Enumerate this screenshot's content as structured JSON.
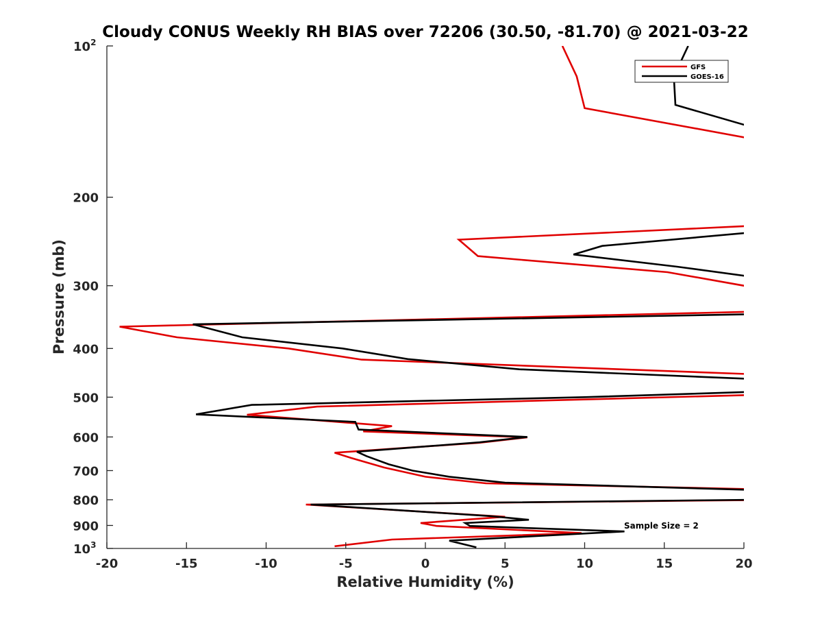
{
  "chart_data": {
    "type": "line",
    "title": "Cloudy CONUS Weekly RH BIAS over 72206 (30.50, -81.70) @ 2021-03-22",
    "xlabel": "Relative Humidity (%)",
    "ylabel": "Pressure (mb)",
    "xlim": [
      -20,
      20
    ],
    "ylim": [
      100,
      1000
    ],
    "yscale": "log",
    "y_reversed": true,
    "xticks": [
      {
        "value": -20,
        "label": "-20"
      },
      {
        "value": -15,
        "label": "-15"
      },
      {
        "value": -10,
        "label": "-10"
      },
      {
        "value": -5,
        "label": "-5"
      },
      {
        "value": 0,
        "label": "0"
      },
      {
        "value": 5,
        "label": "5"
      },
      {
        "value": 10,
        "label": "10"
      },
      {
        "value": 15,
        "label": "15"
      },
      {
        "value": 20,
        "label": "20"
      }
    ],
    "yticks": [
      {
        "value": 100,
        "base": "10",
        "exp": "2"
      },
      {
        "value": 200,
        "base": "200",
        "exp": ""
      },
      {
        "value": 300,
        "base": "300",
        "exp": ""
      },
      {
        "value": 400,
        "base": "400",
        "exp": ""
      },
      {
        "value": 500,
        "base": "500",
        "exp": ""
      },
      {
        "value": 600,
        "base": "600",
        "exp": ""
      },
      {
        "value": 700,
        "base": "700",
        "exp": ""
      },
      {
        "value": 800,
        "base": "800",
        "exp": ""
      },
      {
        "value": 900,
        "base": "900",
        "exp": ""
      },
      {
        "value": 1000,
        "base": "10",
        "exp": "3"
      }
    ],
    "legend_position": "top-right",
    "annotation": "Sample Size = 2",
    "series": [
      {
        "name": "GFS",
        "color": "#e00000",
        "points": [
          [
            8.6,
            100
          ],
          [
            9.5,
            115
          ],
          [
            10.0,
            133
          ],
          [
            20.5,
            153
          ],
          [
            20.5,
            228
          ],
          [
            2.1,
            243
          ],
          [
            3.3,
            262
          ],
          [
            15.2,
            282
          ],
          [
            20.5,
            302
          ],
          [
            20.5,
            338
          ],
          [
            -19.2,
            362
          ],
          [
            -15.6,
            380
          ],
          [
            -8.6,
            400
          ],
          [
            -4.0,
            421
          ],
          [
            20.5,
            450
          ],
          [
            20.5,
            495
          ],
          [
            -6.8,
            522
          ],
          [
            -11.2,
            542
          ],
          [
            -2.1,
            571
          ],
          [
            -3.9,
            585
          ],
          [
            6.4,
            601
          ],
          [
            3.4,
            616
          ],
          [
            -5.7,
            645
          ],
          [
            -4.7,
            660
          ],
          [
            -2.6,
            690
          ],
          [
            0.0,
            720
          ],
          [
            3.8,
            742
          ],
          [
            20.5,
            762
          ],
          [
            20.5,
            801
          ],
          [
            -7.5,
            818
          ],
          [
            5.0,
            865
          ],
          [
            -0.3,
            890
          ],
          [
            0.7,
            902
          ],
          [
            9.8,
            932
          ],
          [
            -2.1,
            960
          ],
          [
            -5.7,
            990
          ]
        ]
      },
      {
        "name": "GOES-16",
        "color": "#000000",
        "points": [
          [
            16.5,
            100
          ],
          [
            15.6,
            115
          ],
          [
            15.7,
            131
          ],
          [
            20.5,
            145
          ],
          [
            20.5,
            235
          ],
          [
            11.1,
            250
          ],
          [
            9.3,
            260
          ],
          [
            15.8,
            275
          ],
          [
            20.5,
            288
          ],
          [
            20.5,
            342
          ],
          [
            -14.6,
            358
          ],
          [
            -11.5,
            380
          ],
          [
            -5.2,
            400
          ],
          [
            -1.1,
            420
          ],
          [
            5.9,
            440
          ],
          [
            20.5,
            460
          ],
          [
            20.5,
            488
          ],
          [
            10.0,
            500
          ],
          [
            -10.9,
            518
          ],
          [
            -14.4,
            541
          ],
          [
            -4.4,
            560
          ],
          [
            -4.2,
            580
          ],
          [
            6.4,
            600
          ],
          [
            3.4,
            615
          ],
          [
            -4.3,
            642
          ],
          [
            -3.7,
            655
          ],
          [
            -2.3,
            680
          ],
          [
            -0.8,
            700
          ],
          [
            1.5,
            720
          ],
          [
            5.0,
            740
          ],
          [
            20.5,
            765
          ],
          [
            20.5,
            800
          ],
          [
            -7.2,
            818
          ],
          [
            4.0,
            862
          ],
          [
            6.5,
            877
          ],
          [
            2.5,
            890
          ],
          [
            2.8,
            902
          ],
          [
            12.5,
            925
          ],
          [
            1.5,
            965
          ],
          [
            3.2,
            995
          ]
        ]
      }
    ]
  }
}
